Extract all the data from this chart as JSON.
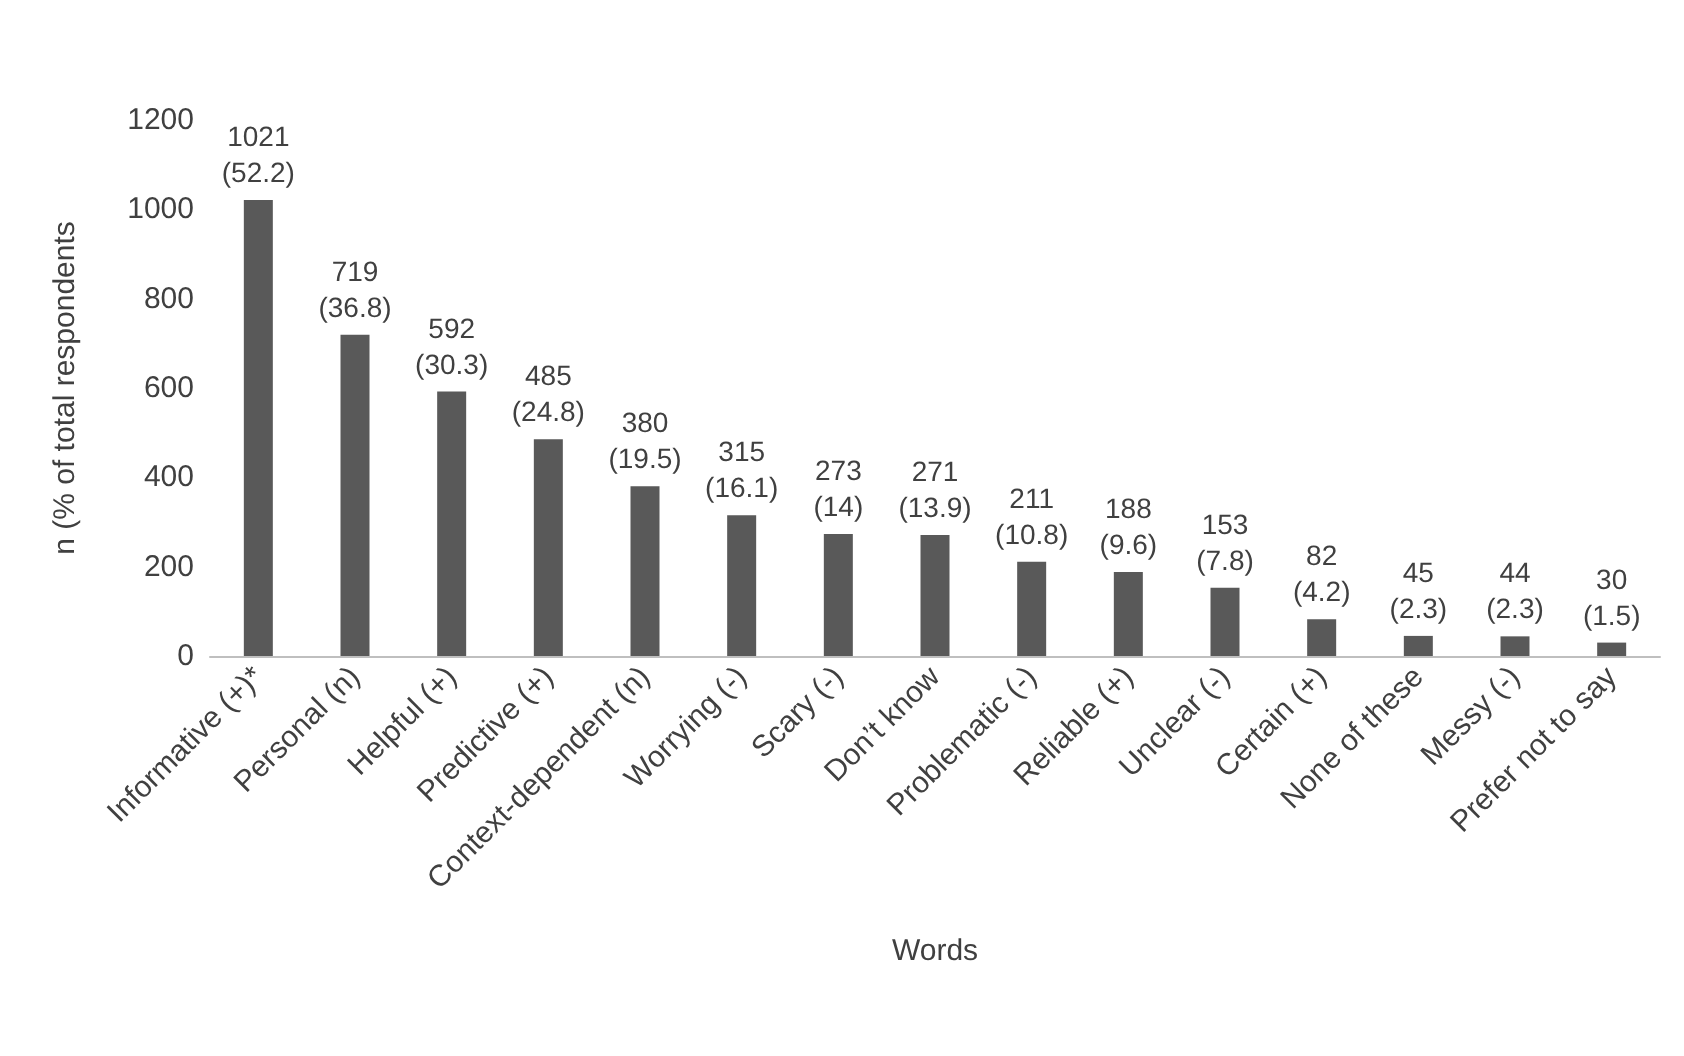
{
  "chart_data": {
    "type": "bar",
    "xlabel": "Words",
    "ylabel": "n (% of total respondents",
    "categories": [
      "Informative (+)*",
      "Personal (n)",
      "Helpful (+)",
      "Predictive (+)",
      "Context-dependent (n)",
      "Worrying (-)",
      "Scary (-)",
      "Don’t know",
      "Problematic (-)",
      "Reliable (+)",
      "Unclear (-)",
      "Certain (+)",
      "None of these",
      "Messy (-)",
      "Prefer not to say"
    ],
    "values": [
      1021,
      719,
      592,
      485,
      380,
      315,
      273,
      271,
      211,
      188,
      153,
      82,
      45,
      44,
      30
    ],
    "value_labels": [
      "1021\n(52.2)",
      "719\n(36.8)",
      "592\n(30.3)",
      "485\n(24.8)",
      "380\n(19.5)",
      "315\n(16.1)",
      "273\n(14)",
      "271\n(13.9)",
      "211\n(10.8)",
      "188\n(9.6)",
      "153\n(7.8)",
      "82\n(4.2)",
      "45\n(2.3)",
      "44\n(2.3)",
      "30\n(1.5)"
    ],
    "color": "#595959",
    "ylim": [
      0,
      1200
    ],
    "yticks": [
      0,
      200,
      400,
      600,
      800,
      1000,
      1200
    ],
    "grid": false
  }
}
